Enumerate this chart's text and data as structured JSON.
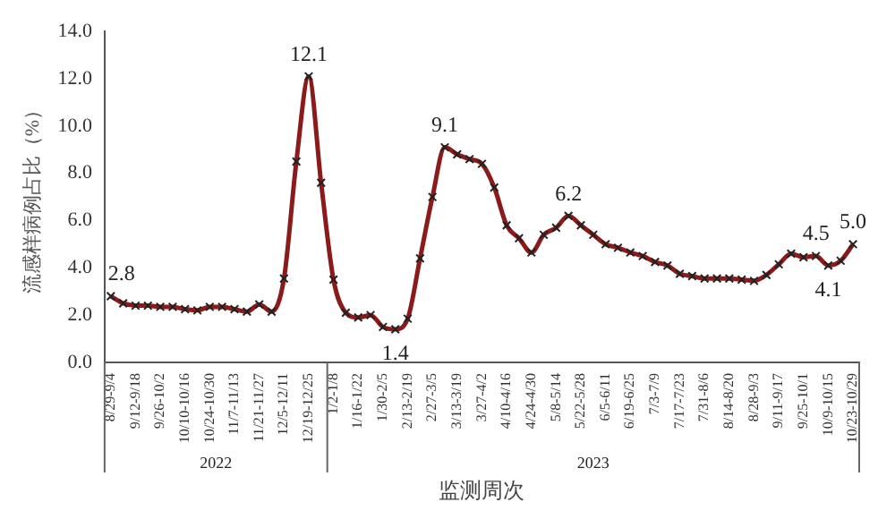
{
  "chart_data": {
    "type": "line",
    "ylabel": "流感样病例占比（%）",
    "xlabel": "监测周次",
    "categories": [
      "8/29-9/4",
      null,
      "9/12-9/18",
      null,
      "9/26-10/2",
      null,
      "10/10-10/16",
      null,
      "10/24-10/30",
      null,
      "11/7-11/13",
      null,
      "11/21-11/27",
      null,
      "12/5-12/11",
      null,
      "12/19-12/25",
      null,
      "1/2-1/8",
      null,
      "1/16-1/22",
      null,
      "1/30-2/5",
      null,
      "2/13-2/19",
      null,
      "2/27-3/5",
      null,
      "3/13-3/19",
      null,
      "3/27-4/2",
      null,
      "4/10-4/16",
      null,
      "4/24-4/30",
      null,
      "5/8-5/14",
      null,
      "5/22-5/28",
      null,
      "6/5-6/11",
      null,
      "6/19-6/25",
      null,
      "7/3-7/9",
      null,
      "7/17-7/23",
      null,
      "7/31-8/6",
      null,
      "8/14-8/20",
      null,
      "8/28-9/3",
      null,
      "9/11-9/17",
      null,
      "9/25-10/1",
      null,
      "10/9-10/15",
      null,
      "10/23-10/29"
    ],
    "series": [
      {
        "color": "#8b1a1a",
        "values": [
          2.8,
          2.5,
          2.4,
          2.4,
          2.35,
          2.35,
          2.25,
          2.2,
          2.35,
          2.35,
          2.25,
          2.15,
          2.45,
          2.15,
          3.55,
          8.5,
          12.1,
          7.6,
          3.5,
          2.1,
          1.9,
          2.0,
          1.5,
          1.4,
          1.85,
          4.4,
          7.0,
          9.1,
          8.8,
          8.6,
          8.4,
          7.4,
          5.8,
          5.25,
          4.65,
          5.4,
          5.7,
          6.2,
          5.8,
          5.4,
          5.0,
          4.85,
          4.65,
          4.5,
          4.25,
          4.1,
          3.75,
          3.65,
          3.55,
          3.55,
          3.55,
          3.5,
          3.45,
          3.7,
          4.15,
          4.6,
          4.45,
          4.5,
          4.1,
          4.3,
          5.0
        ],
        "value_labels": [
          "2.8",
          null,
          null,
          null,
          null,
          null,
          null,
          null,
          null,
          null,
          null,
          null,
          null,
          null,
          null,
          null,
          "12.1",
          null,
          null,
          null,
          null,
          null,
          null,
          "1.4",
          null,
          null,
          null,
          "9.1",
          null,
          null,
          null,
          null,
          null,
          null,
          null,
          null,
          null,
          "6.2",
          null,
          null,
          null,
          null,
          null,
          null,
          null,
          null,
          null,
          null,
          null,
          null,
          null,
          null,
          null,
          null,
          null,
          null,
          null,
          "4.5",
          "4.1",
          null,
          "5.0"
        ]
      }
    ],
    "ylim": [
      0,
      14
    ],
    "yticks": [
      {
        "value": 0,
        "label": "0.0"
      },
      {
        "value": 2,
        "label": "2.0"
      },
      {
        "value": 4,
        "label": "4.0"
      },
      {
        "value": 6,
        "label": "6.0"
      },
      {
        "value": 8,
        "label": "8.0"
      },
      {
        "value": 10,
        "label": "10.0"
      },
      {
        "value": 12,
        "label": "12.0"
      },
      {
        "value": 14,
        "label": "14.0"
      }
    ],
    "annotations": [
      "2022",
      "2023"
    ],
    "grid": false,
    "legend": false,
    "marker": "cross",
    "line_style": "solid"
  }
}
